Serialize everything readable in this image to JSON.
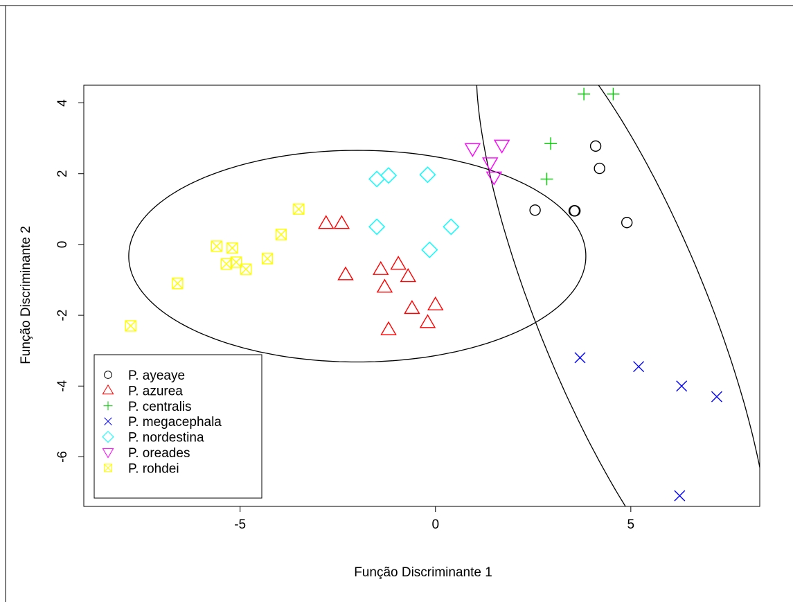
{
  "chart_data": {
    "type": "scatter",
    "title": "",
    "xlabel": "Função Discriminante 1",
    "ylabel": "Função Discriminante 2",
    "xlim": [
      -9,
      8.3
    ],
    "ylim": [
      -7.4,
      4.5
    ],
    "x_ticks": [
      -5,
      0,
      5
    ],
    "x_tick_labels": [
      "-5",
      "0",
      "5"
    ],
    "y_ticks": [
      4,
      2,
      0,
      -2,
      -4,
      -6
    ],
    "y_tick_labels": [
      "4",
      "2",
      "0",
      "-2",
      "-4",
      "-6"
    ],
    "grid": false,
    "legend_position": "bottom-left",
    "series": [
      {
        "name": "P. ayeaye",
        "marker": "circle",
        "color": "#000000",
        "points": [
          [
            2.55,
            0.97
          ],
          [
            3.55,
            0.95
          ],
          [
            3.57,
            0.95
          ],
          [
            4.1,
            2.78
          ],
          [
            4.2,
            2.15
          ],
          [
            4.9,
            0.62
          ]
        ]
      },
      {
        "name": "P. azurea",
        "marker": "triangle-up",
        "color": "#ff0000",
        "points": [
          [
            -2.8,
            0.6
          ],
          [
            -2.4,
            0.6
          ],
          [
            -2.3,
            -0.85
          ],
          [
            -1.4,
            -0.7
          ],
          [
            -1.3,
            -1.2
          ],
          [
            -0.95,
            -0.55
          ],
          [
            -0.7,
            -0.9
          ],
          [
            -0.6,
            -1.8
          ],
          [
            -1.2,
            -2.4
          ],
          [
            -0.2,
            -2.2
          ],
          [
            0.0,
            -1.7
          ]
        ]
      },
      {
        "name": "P. centralis",
        "marker": "plus",
        "color": "#00cd00",
        "points": [
          [
            3.8,
            4.25
          ],
          [
            4.55,
            4.25
          ],
          [
            2.95,
            2.85
          ],
          [
            2.85,
            1.85
          ]
        ]
      },
      {
        "name": "P. megacephala",
        "marker": "cross",
        "color": "#0000ff",
        "points": [
          [
            3.7,
            -3.2
          ],
          [
            5.2,
            -3.45
          ],
          [
            6.3,
            -4.0
          ],
          [
            7.2,
            -4.3
          ],
          [
            6.25,
            -7.1
          ]
        ]
      },
      {
        "name": "P. nordestina",
        "marker": "diamond",
        "color": "#00ffff",
        "points": [
          [
            -1.5,
            1.85
          ],
          [
            -1.2,
            1.95
          ],
          [
            -0.2,
            1.97
          ],
          [
            -1.5,
            0.5
          ],
          [
            0.4,
            0.5
          ],
          [
            -0.15,
            -0.15
          ]
        ]
      },
      {
        "name": "P. oreades",
        "marker": "triangle-down",
        "color": "#ff00ff",
        "points": [
          [
            0.95,
            2.7
          ],
          [
            1.7,
            2.8
          ],
          [
            1.4,
            2.3
          ],
          [
            1.5,
            1.9
          ]
        ]
      },
      {
        "name": "P. rohdei",
        "marker": "square-x",
        "color": "#ffff00",
        "points": [
          [
            -7.8,
            -2.3
          ],
          [
            -6.6,
            -1.1
          ],
          [
            -5.6,
            -0.05
          ],
          [
            -5.2,
            -0.1
          ],
          [
            -5.35,
            -0.55
          ],
          [
            -5.1,
            -0.5
          ],
          [
            -4.85,
            -0.7
          ],
          [
            -4.3,
            -0.4
          ],
          [
            -3.95,
            0.28
          ],
          [
            -3.5,
            1.0
          ]
        ]
      }
    ],
    "ellipses": [
      {
        "center": [
          -2.0,
          -0.33
        ],
        "semi_major": 5.85,
        "semi_minor": 2.99,
        "angle_deg": 0
      },
      {
        "center": [
          4.8,
          -1.92
        ],
        "semi_major": 9.15,
        "semi_minor": 2.2,
        "angle_deg": -70
      }
    ]
  }
}
